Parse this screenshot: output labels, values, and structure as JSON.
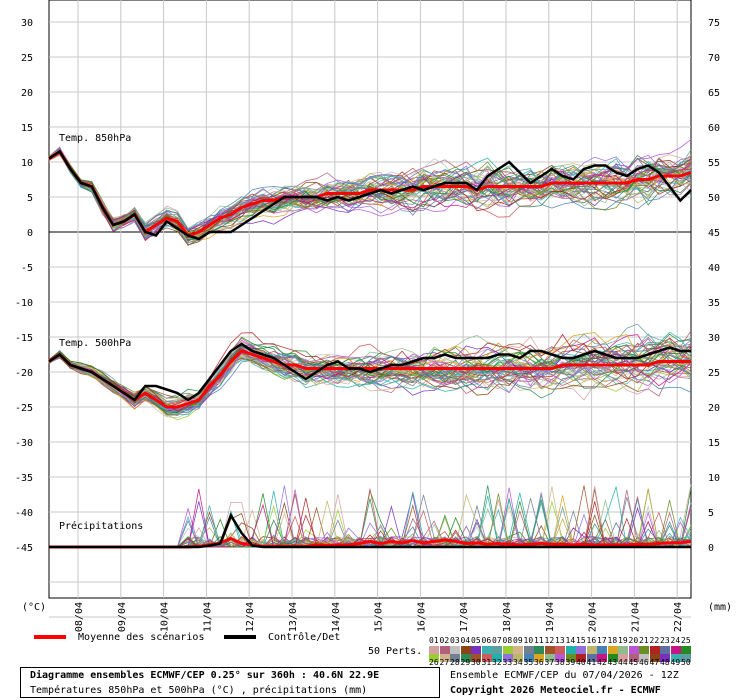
{
  "chart_data": {
    "type": "line",
    "dates": [
      "08/04",
      "09/04",
      "10/04",
      "11/04",
      "12/04",
      "13/04",
      "14/04",
      "15/04",
      "16/04",
      "17/04",
      "18/04",
      "19/04",
      "20/04",
      "21/04",
      "22/04"
    ],
    "left_ticks": [
      "30",
      "25",
      "20",
      "15",
      "10",
      "5",
      "0",
      "-5",
      "-10",
      "-15",
      "-20",
      "-25",
      "-30",
      "-35",
      "-40",
      "-45"
    ],
    "right_ticks": [
      "75",
      "70",
      "65",
      "60",
      "55",
      "50",
      "45",
      "40",
      "35",
      "30",
      "25",
      "20",
      "15",
      "10",
      "5",
      "0"
    ],
    "left_unit": "(°C)",
    "right_unit": "(mm)",
    "ylim_left": [
      -50,
      30
    ],
    "annotations": {
      "t850": "Temp. 850hPa",
      "t500": "Temp. 500hPa",
      "precip": "Précipitations"
    },
    "series": [
      {
        "name": "Moyenne des scénarios",
        "color": "#ff0000",
        "t850": [
          10.5,
          11.5,
          9,
          7,
          6.5,
          3.5,
          1,
          1.5,
          2.5,
          0,
          1,
          2,
          1.5,
          -0.5,
          0,
          1,
          2,
          2.5,
          3.5,
          4,
          4.5,
          4.5,
          5,
          5,
          5,
          5,
          5.5,
          5.5,
          5.5,
          5.5,
          6,
          6,
          6,
          6,
          6,
          6.5,
          6.5,
          6.5,
          6.5,
          6.5,
          6,
          6.5,
          6.5,
          6.5,
          6.5,
          6.5,
          6.5,
          7,
          7,
          7,
          7,
          7,
          7,
          7,
          7,
          7.5,
          7.5,
          8,
          8,
          8,
          8.5
        ],
        "t500": [
          -18.5,
          -17.5,
          -19,
          -19.5,
          -20,
          -21,
          -22,
          -23,
          -24,
          -23,
          -24,
          -25,
          -25,
          -24.5,
          -24,
          -22,
          -20.5,
          -18.5,
          -17,
          -17.5,
          -18,
          -18.5,
          -19,
          -19,
          -19.5,
          -19.5,
          -19.5,
          -19.5,
          -19.5,
          -19.5,
          -19.5,
          -19.5,
          -19.5,
          -19.5,
          -19.5,
          -19.5,
          -19.5,
          -19.5,
          -19.5,
          -19.5,
          -19.5,
          -19.5,
          -19.5,
          -19.5,
          -19.5,
          -19.5,
          -19.5,
          -19.5,
          -19,
          -19,
          -19,
          -19,
          -19,
          -19,
          -19,
          -19,
          -19,
          -18.5,
          -18.5,
          -18.5,
          -18.5
        ],
        "precip": [
          0,
          0,
          0,
          0,
          0,
          0,
          0,
          0,
          0,
          0,
          0,
          0,
          0,
          0,
          0.1,
          0.3,
          0.6,
          1.2,
          0.5,
          0.3,
          0.1,
          0.1,
          0.1,
          0.1,
          0.1,
          0.3,
          0.2,
          0.3,
          0.3,
          0.5,
          0.8,
          0.5,
          0.8,
          0.6,
          0.9,
          0.6,
          0.8,
          1,
          0.8,
          0.5,
          0.6,
          0.4,
          0.5,
          0.4,
          0.3,
          0.4,
          0.5,
          0.4,
          0.4,
          0.3,
          0.4,
          0.3,
          0.3,
          0.3,
          0.3,
          0.4,
          0.4,
          0.5,
          0.6,
          0.6,
          0.8
        ]
      },
      {
        "name": "Contrôle/Det",
        "color": "#000000",
        "t850": [
          10.5,
          11.5,
          9,
          7,
          6.5,
          3.5,
          1,
          1.5,
          2.5,
          0,
          -0.5,
          1.5,
          0.5,
          -0.5,
          -1,
          0,
          0,
          0,
          1,
          2,
          3,
          4,
          5,
          5,
          5,
          5,
          4.5,
          5,
          4.5,
          5,
          5.5,
          6,
          5.5,
          6,
          6.5,
          6,
          6.5,
          7,
          7,
          7,
          6,
          8,
          9,
          10,
          8.5,
          7,
          8,
          9,
          8,
          7.5,
          9,
          9.5,
          9.5,
          8.5,
          8,
          9,
          9.5,
          8.5,
          6.5,
          4.5,
          6
        ],
        "t500": [
          -18.5,
          -17.5,
          -19,
          -19.5,
          -20,
          -21,
          -22,
          -23,
          -24,
          -22,
          -22,
          -22.5,
          -23,
          -24,
          -23,
          -21,
          -19,
          -17,
          -16,
          -17,
          -17.5,
          -18,
          -19,
          -20,
          -21,
          -20,
          -19,
          -18.5,
          -19.5,
          -19.5,
          -20,
          -19.5,
          -19,
          -19,
          -18.5,
          -18,
          -18,
          -17.5,
          -18,
          -18,
          -18,
          -18,
          -17.5,
          -17.5,
          -18,
          -17,
          -17,
          -17.5,
          -18,
          -18,
          -17.5,
          -17,
          -17.5,
          -18,
          -18,
          -18,
          -17.5,
          -17,
          -16.5,
          -17,
          -17
        ],
        "precip": [
          0,
          0,
          0,
          0,
          0,
          0,
          0,
          0,
          0,
          0,
          0,
          0,
          0,
          0,
          0,
          0.2,
          0.5,
          4.5,
          2,
          0.2,
          0,
          0,
          0,
          0,
          0,
          0,
          0,
          0,
          0,
          0,
          0,
          0,
          0,
          0,
          0,
          0,
          0,
          0,
          0,
          0,
          0,
          0,
          0,
          0,
          0,
          0,
          0,
          0,
          0,
          0,
          0,
          0,
          0,
          0,
          0,
          0,
          0,
          0,
          0,
          0,
          0
        ]
      }
    ]
  },
  "legend": {
    "mean_label": "Moyenne des scénarios",
    "control_label": "Contrôle/Det",
    "perts_label": "50 Perts.",
    "perts_row1": [
      "01",
      "02",
      "03",
      "04",
      "05",
      "06",
      "07",
      "08",
      "09",
      "10",
      "11",
      "12",
      "13",
      "14",
      "15",
      "16",
      "17",
      "18",
      "19",
      "20",
      "21",
      "22",
      "23",
      "24",
      "25"
    ],
    "perts_row2": [
      "26",
      "27",
      "28",
      "29",
      "30",
      "31",
      "32",
      "33",
      "34",
      "35",
      "36",
      "37",
      "38",
      "39",
      "40",
      "41",
      "42",
      "43",
      "44",
      "45",
      "46",
      "47",
      "48",
      "49",
      "50"
    ],
    "perts_colors": [
      "#d4a0a0",
      "#b0607c",
      "#c0c0c0",
      "#8b4513",
      "#7b2fbe",
      "#3cb0b0",
      "#5f9ea0",
      "#9acd32",
      "#d2b48c",
      "#708090",
      "#2e8b57",
      "#a0522d",
      "#cd5c5c",
      "#20b2aa",
      "#9370db",
      "#bdb76b",
      "#4682b4",
      "#daa520",
      "#8fbc8f",
      "#ba55d3",
      "#6b8e23",
      "#b22222",
      "#5f6f9f",
      "#c71585",
      "#228b22"
    ]
  },
  "footer": {
    "title": "Diagramme ensembles ECMWF/CEP 0.25° sur 360h : 40.6N 22.9E",
    "subtitle": "Températures 850hPa et 500hPa (°C) , précipitations (mm)",
    "run": "Ensemble ECMWF/CEP du 07/04/2026 - 12Z",
    "copyright": "Copyright 2026 Meteociel.fr - ECMWF"
  }
}
